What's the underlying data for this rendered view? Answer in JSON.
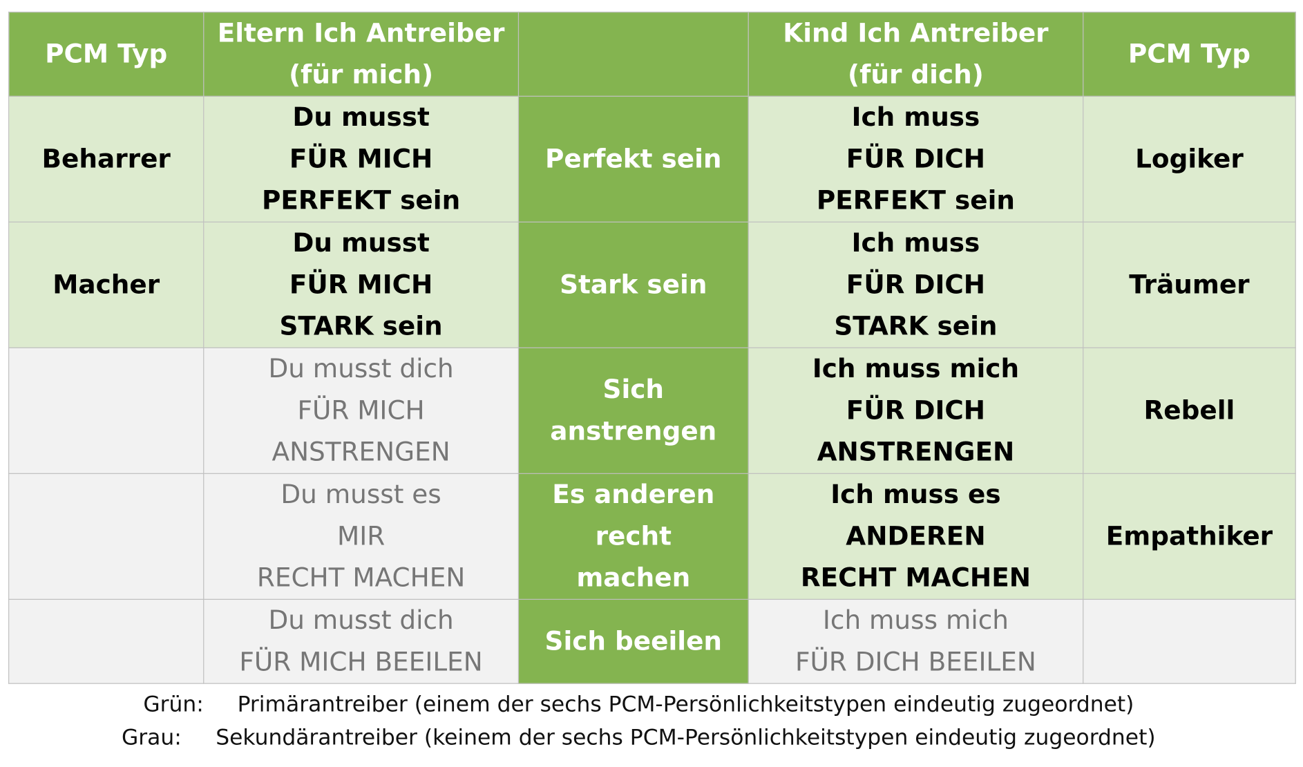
{
  "header": {
    "col1": "PCM Typ",
    "col2": [
      "Eltern Ich Antreiber",
      "(für mich)"
    ],
    "col3": "",
    "col4": [
      "Kind Ich Antreiber",
      "(für dich)"
    ],
    "col5": "PCM Typ"
  },
  "rows": [
    {
      "type_left": "Beharrer",
      "parent": [
        "Du musst",
        "FÜR MICH",
        "PERFEKT sein"
      ],
      "driver": [
        "Perfekt sein"
      ],
      "child": [
        "Ich muss",
        "FÜR DICH",
        "PERFEKT sein"
      ],
      "type_right": "Logiker"
    },
    {
      "type_left": "Macher",
      "parent": [
        "Du musst",
        "FÜR MICH",
        "STARK sein"
      ],
      "driver": [
        "Stark sein"
      ],
      "child": [
        "Ich muss",
        "FÜR DICH",
        "STARK sein"
      ],
      "type_right": "Träumer"
    },
    {
      "type_left": "",
      "parent": [
        "Du musst dich",
        "FÜR MICH",
        "ANSTRENGEN"
      ],
      "driver": [
        "Sich",
        "anstrengen"
      ],
      "child": [
        "Ich muss mich",
        "FÜR DICH",
        "ANSTRENGEN"
      ],
      "type_right": "Rebell"
    },
    {
      "type_left": "",
      "parent": [
        "Du musst es",
        "MIR",
        "RECHT MACHEN"
      ],
      "driver": [
        "Es anderen",
        "recht",
        "machen"
      ],
      "child": [
        "Ich muss es",
        "ANDEREN",
        "RECHT MACHEN"
      ],
      "type_right": "Empathiker"
    },
    {
      "type_left": "",
      "parent": [
        "Du musst dich",
        "FÜR MICH BEEILEN"
      ],
      "driver": [
        "Sich beeilen"
      ],
      "child": [
        "Ich muss mich",
        "FÜR DICH BEEILEN"
      ],
      "type_right": ""
    }
  ],
  "legend": [
    {
      "key": "Grün:",
      "text": "Primärantreiber (einem der sechs PCM-Persönlichkeitstypen eindeutig zugeordnet)"
    },
    {
      "key": "Grau:",
      "text": "Sekundärantreiber (keinem der sechs PCM-Persönlichkeitstypen eindeutig zugeordnet)"
    }
  ],
  "colors": {
    "header_green": "#84b450",
    "light_green": "#ddebcf",
    "grey": "#f2f2f2",
    "grey_text": "#767676",
    "border": "#bfbfbf"
  }
}
